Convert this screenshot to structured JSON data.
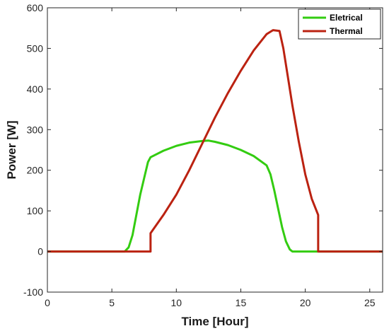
{
  "chart_data": {
    "type": "line",
    "title": "",
    "xlabel": "Time [Hour]",
    "ylabel": "Power [W]",
    "xlim": [
      0,
      26
    ],
    "ylim": [
      -100,
      600
    ],
    "xticks": [
      0,
      5,
      10,
      15,
      20,
      25
    ],
    "yticks": [
      -100,
      0,
      100,
      200,
      300,
      400,
      500,
      600
    ],
    "xtick_labels": [
      "0",
      "5",
      "10",
      "15",
      "20",
      "25"
    ],
    "ytick_labels": [
      "-100",
      "0",
      "100",
      "200",
      "300",
      "400",
      "500",
      "600"
    ],
    "grid": false,
    "legend_position": "top-right",
    "series": [
      {
        "name": "Eletrical",
        "color": "#33cc11",
        "points": [
          [
            0,
            0
          ],
          [
            6,
            0
          ],
          [
            6.3,
            10
          ],
          [
            6.6,
            40
          ],
          [
            6.9,
            90
          ],
          [
            7.2,
            140
          ],
          [
            7.5,
            180
          ],
          [
            7.8,
            220
          ],
          [
            8,
            232
          ],
          [
            9,
            248
          ],
          [
            10,
            260
          ],
          [
            11,
            268
          ],
          [
            12,
            272
          ],
          [
            12.5,
            273
          ],
          [
            13,
            270
          ],
          [
            14,
            262
          ],
          [
            15,
            250
          ],
          [
            16,
            235
          ],
          [
            17,
            212
          ],
          [
            17.3,
            190
          ],
          [
            17.6,
            150
          ],
          [
            17.9,
            105
          ],
          [
            18.2,
            60
          ],
          [
            18.5,
            25
          ],
          [
            18.8,
            5
          ],
          [
            19,
            0
          ],
          [
            21,
            0
          ],
          [
            26,
            0
          ]
        ]
      },
      {
        "name": "Thermal",
        "color": "#bb2211",
        "points": [
          [
            0,
            0
          ],
          [
            8,
            0
          ],
          [
            8,
            45
          ],
          [
            9,
            90
          ],
          [
            10,
            140
          ],
          [
            11,
            200
          ],
          [
            12,
            265
          ],
          [
            13,
            330
          ],
          [
            14,
            390
          ],
          [
            15,
            445
          ],
          [
            16,
            495
          ],
          [
            17,
            535
          ],
          [
            17.5,
            545
          ],
          [
            18,
            543
          ],
          [
            18.3,
            500
          ],
          [
            18.7,
            420
          ],
          [
            19,
            360
          ],
          [
            19.5,
            270
          ],
          [
            20,
            190
          ],
          [
            20.5,
            130
          ],
          [
            21,
            90
          ],
          [
            21,
            0
          ],
          [
            26,
            0
          ]
        ]
      }
    ]
  }
}
